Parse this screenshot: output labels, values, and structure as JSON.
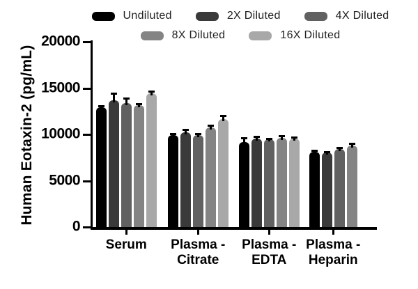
{
  "chart_data": {
    "type": "bar",
    "title": "",
    "ylabel": "Human Eotaxin-2 (pg/mL)",
    "xlabel": "",
    "ylim": [
      0,
      20000
    ],
    "yticks": [
      0,
      5000,
      10000,
      15000,
      20000
    ],
    "grid": false,
    "legend_position": "top",
    "legend_rows": [
      [
        0,
        1,
        2
      ],
      [
        3,
        4
      ]
    ],
    "categories": [
      {
        "label": "Serum",
        "lines": [
          "Serum"
        ]
      },
      {
        "label": "Plasma - Citrate",
        "lines": [
          "Plasma -",
          "Citrate"
        ]
      },
      {
        "label": "Plasma - EDTA",
        "lines": [
          "Plasma -",
          "EDTA"
        ]
      },
      {
        "label": "Plasma - Heparin",
        "lines": [
          "Plasma -",
          "Heparin"
        ]
      }
    ],
    "series": [
      {
        "name": "Undiluted",
        "color": "#000000",
        "values": [
          12950,
          9950,
          9200,
          8150
        ],
        "errors_up": [
          150,
          150,
          400,
          100
        ]
      },
      {
        "name": "2X Diluted",
        "color": "#3a3a3a",
        "values": [
          13650,
          10250,
          9550,
          8050
        ],
        "errors_up": [
          800,
          250,
          250,
          100
        ]
      },
      {
        "name": "4X Diluted",
        "color": "#616161",
        "values": [
          13400,
          9950,
          9450,
          8450
        ],
        "errors_up": [
          500,
          150,
          100,
          150
        ]
      },
      {
        "name": "8X Diluted",
        "color": "#848484",
        "values": [
          13150,
          10750,
          9650,
          8800
        ],
        "errors_up": [
          150,
          250,
          200,
          200
        ]
      },
      {
        "name": "16X Diluted",
        "color": "#a8a8a8",
        "values": [
          14400,
          11650,
          9550,
          null
        ],
        "errors_up": [
          250,
          350,
          120,
          null
        ]
      }
    ],
    "axis_color": "#000000"
  }
}
